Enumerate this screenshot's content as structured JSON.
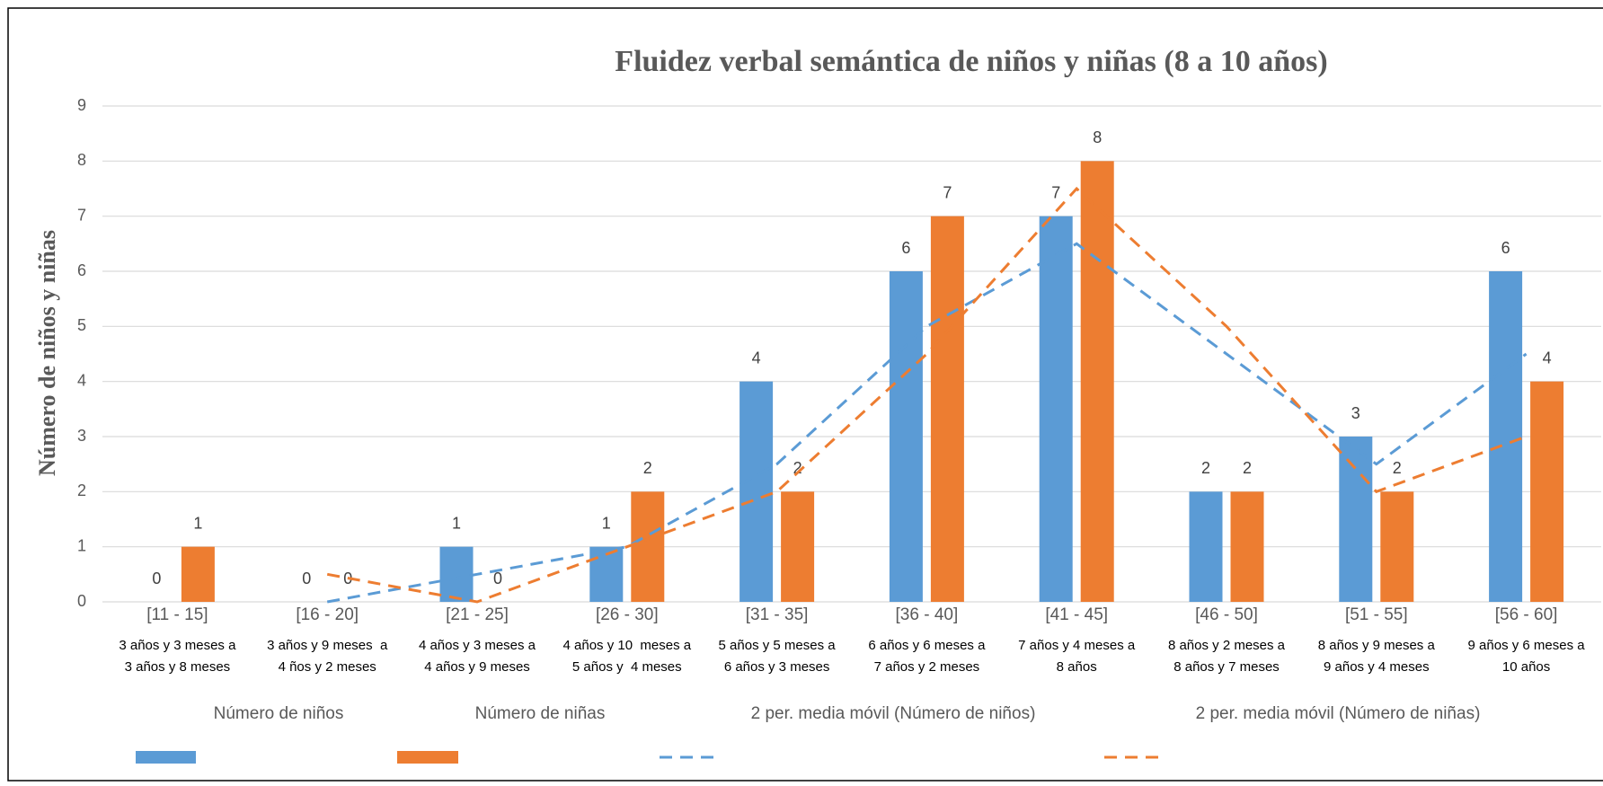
{
  "chart_data": {
    "type": "bar",
    "title": "Fluidez verbal semántica de niños y niñas (8 a 10 años)",
    "y_label": "Número de niños y niñas",
    "categories": [
      "[11 - 15]",
      "[16 - 20]",
      "[21 - 25]",
      "[26 - 30]",
      "[31 - 35]",
      "[36 - 40]",
      "[41 - 45]",
      "[46 - 50]",
      "[51 - 55]",
      "[56 - 60]"
    ],
    "category_sublabels": [
      [
        "3 años y 3 meses a",
        "3 años y 8 meses"
      ],
      [
        "3 años y 9 meses  a",
        "4 ños y 2 meses"
      ],
      [
        "4 años y 3 meses a",
        "4 años y 9 meses"
      ],
      [
        "4 años y 10  meses a",
        "5 años y  4 meses"
      ],
      [
        "5 años y 5 meses a",
        "6 años y 3 meses"
      ],
      [
        "6 años y 6 meses a",
        "7 años y 2 meses"
      ],
      [
        "7 años y 4 meses a",
        "8 años"
      ],
      [
        "8 años y 2 meses a",
        "8 años y 7 meses"
      ],
      [
        "8 años y 9 meses a",
        "9 años y 4 meses"
      ],
      [
        "9 años y 6 meses a",
        "10 años"
      ]
    ],
    "series": [
      {
        "name": "Número de niños",
        "type": "bar",
        "color": "#5b9bd5",
        "values": [
          0,
          0,
          1,
          1,
          4,
          6,
          7,
          2,
          3,
          6
        ]
      },
      {
        "name": "Número de niñas",
        "type": "bar",
        "color": "#ed7d31",
        "values": [
          1,
          0,
          0,
          2,
          2,
          7,
          8,
          2,
          2,
          4
        ]
      },
      {
        "name": "2 per. media móvil (Número de niños)",
        "type": "line",
        "dashed": true,
        "color": "#5b9bd5",
        "values": [
          null,
          0,
          0.5,
          1,
          2.5,
          5,
          6.5,
          4.5,
          2.5,
          4.5
        ]
      },
      {
        "name": "2 per. media móvil (Número de niñas)",
        "type": "line",
        "dashed": true,
        "color": "#ed7d31",
        "values": [
          null,
          0.5,
          0,
          1,
          2,
          4.5,
          7.5,
          5,
          2,
          3
        ]
      }
    ],
    "ylim": [
      0,
      9
    ],
    "yticks": [
      0,
      1,
      2,
      3,
      4,
      5,
      6,
      7,
      8,
      9
    ],
    "grid": true,
    "data_labels": true,
    "legend": "bottom"
  }
}
